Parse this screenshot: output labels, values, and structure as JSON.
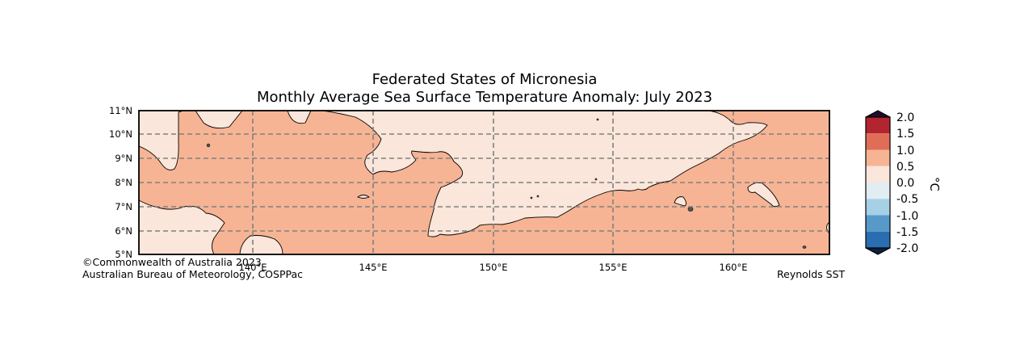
{
  "title": {
    "line1": "Federated States of Micronesia",
    "line2": "Monthly Average Sea Surface Temperature Anomaly: July 2023"
  },
  "lat_labels": [
    "11°N",
    "10°N",
    "9°N",
    "8°N",
    "7°N",
    "6°N",
    "5°N"
  ],
  "lon_labels": [
    "140°E",
    "145°E",
    "150°E",
    "155°E",
    "160°E"
  ],
  "colorbar": {
    "unit": "°C",
    "ticks": [
      "2.0",
      "1.5",
      "1.0",
      "0.5",
      "0.0",
      "-0.5",
      "-1.0",
      "-1.5",
      "-2.0"
    ],
    "colors": [
      "#1d0f2c",
      "#b2242f",
      "#e06d57",
      "#f6b494",
      "#fae6da",
      "#e2ecf3",
      "#a6d0e6",
      "#5799c9",
      "#2a6db1",
      "#0e1f3d"
    ]
  },
  "colors": {
    "anomaly_05_10": "#f6b494",
    "anomaly_00_05": "#fae6da"
  },
  "credits": {
    "copyright": "©Commonwealth of Australia 2023",
    "agency": "Australian Bureau of Meteorology, COSPPac",
    "source": "Reynolds SST"
  }
}
